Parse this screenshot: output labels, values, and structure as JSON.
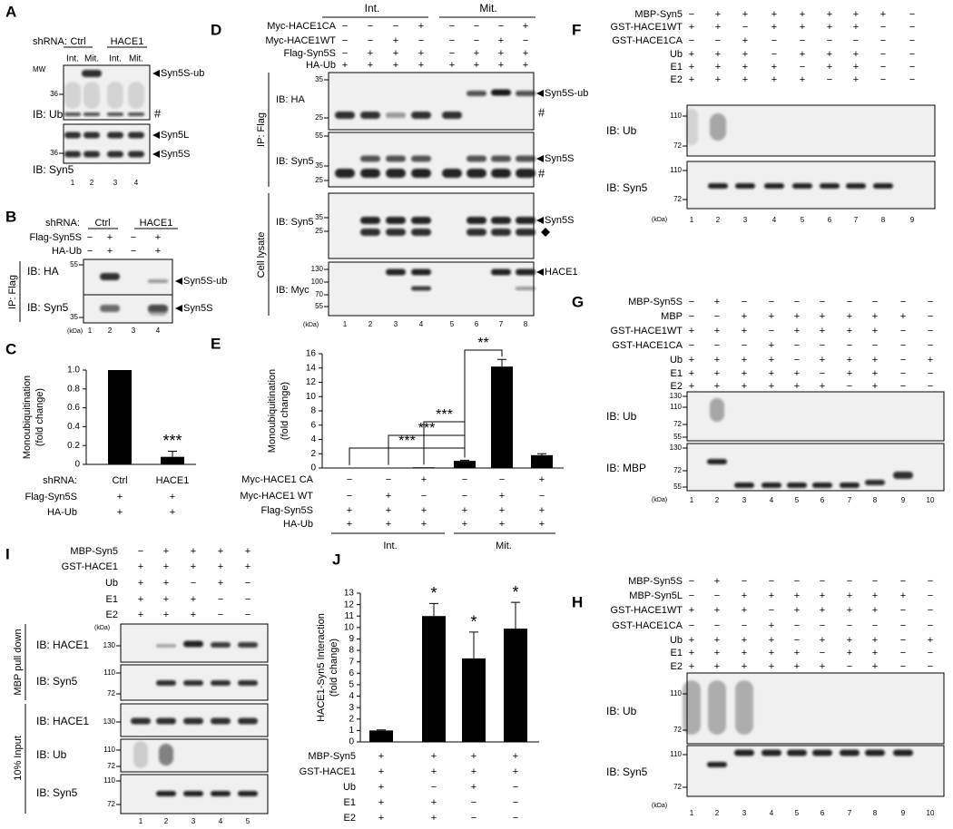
{
  "chart_data": [
    {
      "type": "bar",
      "label": "C",
      "y_label": [
        "Monoubiquitination",
        "(fold change)"
      ],
      "color": "#000000",
      "ylim": [
        0,
        1
      ],
      "yticks": [
        0,
        0.2,
        0.4,
        0.6,
        0.8,
        {
          "value": 1,
          "label": "1.0"
        }
      ],
      "category_label": "shRNA:",
      "categories": [
        "Ctrl",
        "HACE1"
      ],
      "values": [
        1,
        0.08
      ],
      "errors": [
        null,
        0.06
      ],
      "significance": [
        null,
        "***"
      ],
      "conditions": [
        {
          "name": "Flag-Syn5S",
          "signs": [
            "+",
            "+"
          ]
        },
        {
          "name": "HA-Ub",
          "signs": [
            "+",
            "+"
          ]
        }
      ]
    },
    {
      "type": "bar",
      "label": "E",
      "y_label": [
        "Monoubiquitination",
        "(fold change)"
      ],
      "color": "#000000",
      "ylim": [
        0,
        16
      ],
      "yticks": [
        0,
        2,
        4,
        6,
        8,
        10,
        12,
        14,
        16
      ],
      "values": [
        0.02,
        0.05,
        0.1,
        1,
        14.2,
        1.8
      ],
      "errors": [
        null,
        null,
        null,
        0.1,
        1,
        0.2
      ],
      "significance_brackets": [
        "***",
        "***",
        "***",
        "**"
      ],
      "conditions": [
        {
          "name": "Myc-HACE1 CA",
          "signs": [
            "−",
            "−",
            "+",
            "−",
            "−",
            "+"
          ]
        },
        {
          "name": "Myc-HACE1 WT",
          "signs": [
            "−",
            "+",
            "−",
            "−",
            "+",
            "−"
          ]
        },
        {
          "name": "Flag-Syn5S",
          "signs": [
            "+",
            "+",
            "+",
            "+",
            "+",
            "+"
          ]
        },
        {
          "name": "HA-Ub",
          "signs": [
            "+",
            "+",
            "+",
            "+",
            "+",
            "+"
          ]
        }
      ],
      "groups": [
        "Int.",
        "Mit."
      ]
    },
    {
      "type": "bar",
      "label": "J",
      "y_label": [
        "HACE1-Syn5 Interaction",
        "(fold change)"
      ],
      "color": "#000000",
      "ylim": [
        0,
        13
      ],
      "yticks": [
        0,
        1,
        2,
        3,
        4,
        5,
        6,
        7,
        8,
        9,
        10,
        11,
        12,
        13
      ],
      "values": [
        1,
        11,
        7.3,
        9.9
      ],
      "errors": [
        0.05,
        1.1,
        2.3,
        2.3
      ],
      "significance": [
        null,
        "*",
        "*",
        "*"
      ],
      "conditions": [
        {
          "name": "MBP-Syn5",
          "signs": [
            "+",
            "+",
            "+",
            "+"
          ]
        },
        {
          "name": "GST-HACE1",
          "signs": [
            "+",
            "+",
            "+",
            "+"
          ]
        },
        {
          "name": "Ub",
          "signs": [
            "+",
            "−",
            "+",
            "−"
          ]
        },
        {
          "name": "E1",
          "signs": [
            "+",
            "+",
            "−",
            "−"
          ]
        },
        {
          "name": "E2",
          "signs": [
            "+",
            "+",
            "−",
            "−"
          ]
        }
      ]
    }
  ],
  "panels": {
    "A": {
      "letter": "A",
      "shrna_label": "shRNA:",
      "groups": [
        "Ctrl",
        "HACE1"
      ],
      "fractions": [
        "Int.",
        "Mit.",
        "Int.",
        "Mit."
      ],
      "mw_label": "MW",
      "blots": [
        {
          "label": "IB: Ub",
          "markers": [
            "36"
          ],
          "bands": [
            "Syn5S-ub"
          ],
          "marks": [
            "#"
          ]
        },
        {
          "label": "IB: Syn5",
          "markers": [
            "36"
          ],
          "bands": [
            "Syn5L",
            "Syn5S"
          ]
        }
      ],
      "lanes": [
        "1",
        "2",
        "3",
        "4"
      ]
    },
    "B": {
      "letter": "B",
      "shrna_label": "shRNA:",
      "groups": [
        "Ctrl",
        "HACE1"
      ],
      "conditions": [
        {
          "name": "Flag-Syn5S",
          "signs": [
            "−",
            "+",
            "−",
            "+"
          ]
        },
        {
          "name": "HA-Ub",
          "signs": [
            "−",
            "+",
            "−",
            "+"
          ]
        }
      ],
      "blots": [
        {
          "label": "IB: HA",
          "markers": [
            "55"
          ],
          "bands": [
            "Syn5S-ub"
          ]
        },
        {
          "label": "IB: Syn5",
          "markers": [
            "35"
          ],
          "bands": [
            "Syn5S"
          ]
        }
      ],
      "section": "IP: Flag",
      "kda": "(kDa)",
      "lanes": [
        "1",
        "2",
        "3",
        "4"
      ]
    },
    "D": {
      "letter": "D",
      "groups": [
        "Int.",
        "Mit."
      ],
      "conditions": [
        {
          "name": "Myc-HACE1CA",
          "signs": [
            "−",
            "−",
            "−",
            "+",
            "−",
            "−",
            "−",
            "+"
          ]
        },
        {
          "name": "Myc-HACE1WT",
          "signs": [
            "−",
            "−",
            "+",
            "−",
            "−",
            "−",
            "+",
            "−"
          ]
        },
        {
          "name": "Flag-Syn5S",
          "signs": [
            "−",
            "+",
            "+",
            "+",
            "−",
            "+",
            "+",
            "+"
          ]
        },
        {
          "name": "HA-Ub",
          "signs": [
            "+",
            "+",
            "+",
            "+",
            "+",
            "+",
            "+",
            "+"
          ]
        }
      ],
      "blots": [
        {
          "label": "IB: HA",
          "markers": [
            "35",
            "25"
          ],
          "bands": [
            "Syn5S-ub"
          ],
          "marks": [
            "#"
          ]
        },
        {
          "label": "IB: Syn5",
          "markers": [
            "55",
            "35",
            "25"
          ],
          "bands": [
            "Syn5S"
          ],
          "marks": [
            "#"
          ]
        },
        {
          "label": "IB: Syn5",
          "markers": [
            "35",
            "25"
          ],
          "bands": [
            "Syn5S"
          ]
        },
        {
          "label": "IB: Myc",
          "markers": [
            "130",
            "100",
            "70",
            "55"
          ],
          "bands": [
            "HACE1"
          ]
        }
      ],
      "sections": [
        "IP: Flag",
        "Cell lysate"
      ],
      "kda": "(kDa)",
      "lanes": [
        "1",
        "2",
        "3",
        "4",
        "5",
        "6",
        "7",
        "8"
      ]
    },
    "F": {
      "letter": "F",
      "conditions": [
        {
          "name": "MBP-Syn5",
          "signs": [
            "−",
            "+",
            "+",
            "+",
            "+",
            "+",
            "+",
            "+",
            "−"
          ]
        },
        {
          "name": "GST-HACE1WT",
          "signs": [
            "+",
            "+",
            "−",
            "+",
            "+",
            "+",
            "+",
            "−",
            "−"
          ]
        },
        {
          "name": "GST-HACE1CA",
          "signs": [
            "−",
            "−",
            "+",
            "−",
            "−",
            "−",
            "−",
            "−",
            "−"
          ]
        },
        {
          "name": "Ub",
          "signs": [
            "+",
            "+",
            "+",
            "−",
            "+",
            "+",
            "+",
            "−",
            "−"
          ]
        },
        {
          "name": "E1",
          "signs": [
            "+",
            "+",
            "+",
            "+",
            "−",
            "+",
            "+",
            "−",
            "−"
          ]
        },
        {
          "name": "E2",
          "signs": [
            "+",
            "+",
            "+",
            "+",
            "+",
            "−",
            "+",
            "−",
            "−"
          ]
        }
      ],
      "blots": [
        {
          "label": "IB: Ub",
          "markers": [
            "110",
            "72"
          ]
        },
        {
          "label": "IB: Syn5",
          "markers": [
            "110",
            "72"
          ]
        }
      ],
      "kda": "(kDa)",
      "lanes": [
        "1",
        "2",
        "3",
        "4",
        "5",
        "6",
        "7",
        "8",
        "9"
      ]
    },
    "G": {
      "letter": "G",
      "conditions": [
        {
          "name": "MBP-Syn5S",
          "signs": [
            "−",
            "+",
            "−",
            "−",
            "−",
            "−",
            "−",
            "−",
            "−",
            "−"
          ]
        },
        {
          "name": "MBP",
          "signs": [
            "−",
            "−",
            "+",
            "+",
            "+",
            "+",
            "+",
            "+",
            "+",
            "−"
          ]
        },
        {
          "name": "GST-HACE1WT",
          "signs": [
            "+",
            "+",
            "+",
            "−",
            "+",
            "+",
            "+",
            "+",
            "−",
            "−"
          ]
        },
        {
          "name": "GST-HACE1CA",
          "signs": [
            "−",
            "−",
            "−",
            "+",
            "−",
            "−",
            "−",
            "−",
            "−",
            "−"
          ]
        },
        {
          "name": "Ub",
          "signs": [
            "+",
            "+",
            "+",
            "+",
            "−",
            "+",
            "+",
            "+",
            "−",
            "+"
          ]
        },
        {
          "name": "E1",
          "signs": [
            "+",
            "+",
            "+",
            "+",
            "+",
            "−",
            "+",
            "+",
            "−",
            "−"
          ]
        },
        {
          "name": "E2",
          "signs": [
            "+",
            "+",
            "+",
            "+",
            "+",
            "+",
            "−",
            "+",
            "−",
            "−"
          ]
        }
      ],
      "blots": [
        {
          "label": "IB: Ub",
          "markers": [
            "130",
            "110",
            "72",
            "55"
          ]
        },
        {
          "label": "IB: MBP",
          "markers": [
            "130",
            "72",
            "55"
          ]
        }
      ],
      "kda": "(kDa)",
      "lanes": [
        "1",
        "2",
        "3",
        "4",
        "5",
        "6",
        "7",
        "8",
        "9",
        "10"
      ]
    },
    "H": {
      "letter": "H",
      "conditions": [
        {
          "name": "MBP-Syn5S",
          "signs": [
            "−",
            "+",
            "−",
            "−",
            "−",
            "−",
            "−",
            "−",
            "−",
            "−"
          ]
        },
        {
          "name": "MBP-Syn5L",
          "signs": [
            "−",
            "−",
            "+",
            "+",
            "+",
            "+",
            "+",
            "+",
            "+",
            "−"
          ]
        },
        {
          "name": "GST-HACE1WT",
          "signs": [
            "+",
            "+",
            "+",
            "−",
            "+",
            "+",
            "+",
            "+",
            "−",
            "−"
          ]
        },
        {
          "name": "GST-HACE1CA",
          "signs": [
            "−",
            "−",
            "−",
            "+",
            "−",
            "−",
            "−",
            "−",
            "−",
            "−"
          ]
        },
        {
          "name": "Ub",
          "signs": [
            "+",
            "+",
            "+",
            "+",
            "−",
            "+",
            "+",
            "+",
            "−",
            "+"
          ]
        },
        {
          "name": "E1",
          "signs": [
            "+",
            "+",
            "+",
            "+",
            "+",
            "−",
            "+",
            "+",
            "−",
            "−"
          ]
        },
        {
          "name": "E2",
          "signs": [
            "+",
            "+",
            "+",
            "+",
            "+",
            "+",
            "−",
            "+",
            "−",
            "−"
          ]
        }
      ],
      "blots": [
        {
          "label": "IB: Ub",
          "markers": [
            "110",
            "72"
          ]
        },
        {
          "label": "IB: Syn5",
          "markers": [
            "110",
            "72"
          ]
        }
      ],
      "kda": "(kDa)",
      "lanes": [
        "1",
        "2",
        "3",
        "4",
        "5",
        "6",
        "7",
        "8",
        "9",
        "10"
      ]
    },
    "I": {
      "letter": "I",
      "conditions": [
        {
          "name": "MBP-Syn5",
          "signs": [
            "−",
            "+",
            "+",
            "+",
            "+"
          ]
        },
        {
          "name": "GST-HACE1",
          "signs": [
            "+",
            "+",
            "+",
            "+",
            "+"
          ]
        },
        {
          "name": "Ub",
          "signs": [
            "+",
            "+",
            "−",
            "+",
            "−"
          ]
        },
        {
          "name": "E1",
          "signs": [
            "+",
            "+",
            "+",
            "−",
            "−"
          ]
        },
        {
          "name": "E2",
          "signs": [
            "+",
            "+",
            "+",
            "−",
            "−"
          ]
        }
      ],
      "blots": [
        {
          "label": "IB: HACE1",
          "markers": [
            "130"
          ]
        },
        {
          "label": "IB: Syn5",
          "markers": [
            "110",
            "72"
          ]
        },
        {
          "label": "IB: HACE1",
          "markers": [
            "130"
          ]
        },
        {
          "label": "IB: Ub",
          "markers": [
            "110",
            "72"
          ]
        },
        {
          "label": "IB: Syn5",
          "markers": [
            "110",
            "72"
          ]
        }
      ],
      "sections": [
        "MBP pull down",
        "10% Input"
      ],
      "kda": "(kDa)",
      "lanes": [
        "1",
        "2",
        "3",
        "4",
        "5"
      ]
    }
  }
}
